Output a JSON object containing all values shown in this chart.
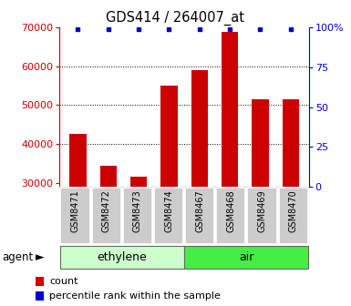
{
  "title": "GDS414 / 264007_at",
  "samples": [
    "GSM8471",
    "GSM8472",
    "GSM8473",
    "GSM8474",
    "GSM8467",
    "GSM8468",
    "GSM8469",
    "GSM8470"
  ],
  "counts": [
    42500,
    34500,
    31500,
    55000,
    59000,
    69000,
    51500,
    51500
  ],
  "percentiles": [
    99,
    99,
    99,
    99,
    99,
    99,
    99,
    99
  ],
  "groups": [
    {
      "label": "ethylene",
      "start": 0,
      "end": 4,
      "color": "#ccffcc"
    },
    {
      "label": "air",
      "start": 4,
      "end": 8,
      "color": "#44ee44"
    }
  ],
  "bar_color": "#cc0000",
  "dot_color": "#0000cc",
  "left_axis_color": "#cc0000",
  "right_axis_color": "#0000cc",
  "ylim_left": [
    29000,
    70000
  ],
  "ylim_right": [
    0,
    100
  ],
  "yticks_left": [
    30000,
    40000,
    50000,
    60000,
    70000
  ],
  "yticks_right": [
    0,
    25,
    50,
    75,
    100
  ],
  "grid_yticks": [
    40000,
    50000,
    60000
  ],
  "background_color": "#ffffff",
  "bar_width": 0.55,
  "sample_box_color": "#cccccc",
  "agent_label": "agent",
  "legend_count_label": "count",
  "legend_percentile_label": "percentile rank within the sample"
}
